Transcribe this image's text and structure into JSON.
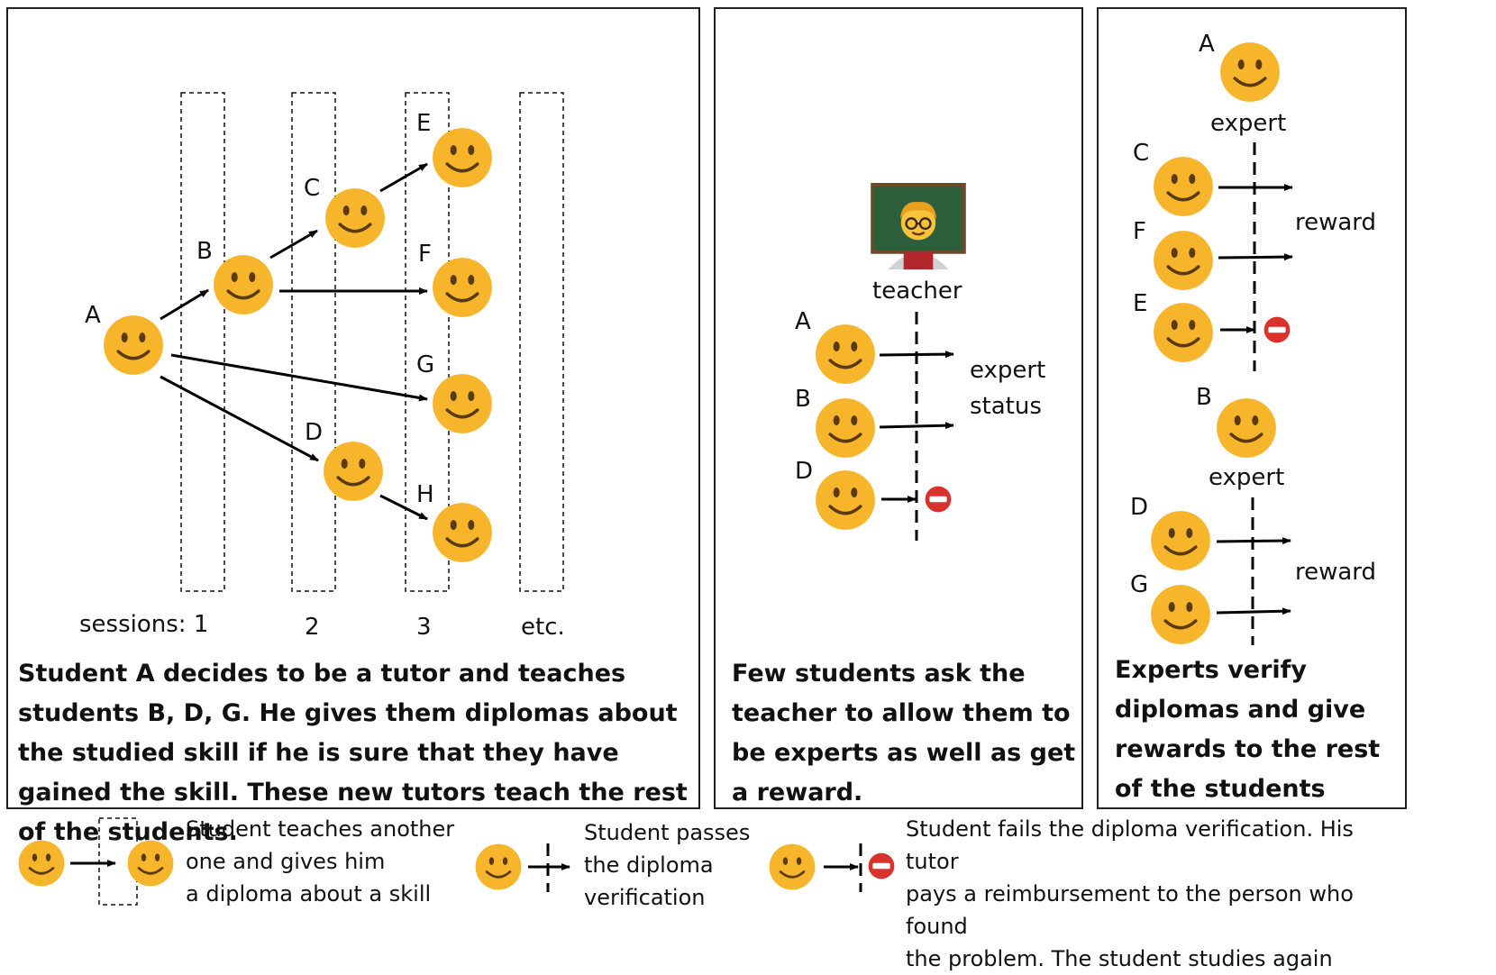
{
  "panels": {
    "tutoring": {
      "node_labels": {
        "A": "A",
        "B": "B",
        "C": "C",
        "D": "D",
        "E": "E",
        "F": "F",
        "G": "G",
        "H": "H"
      },
      "sessions": [
        "sessions: 1",
        "2",
        "3",
        "etc."
      ],
      "caption": "Student A decides to be a tutor and teaches students B, D, G. He gives them diplomas about the studied skill if he is sure that they have gained the skill. These new tutors teach the rest of the students."
    },
    "teacher": {
      "teacher_label": "teacher",
      "student_labels": {
        "A": "A",
        "B": "B",
        "D": "D"
      },
      "result_label_1": "expert",
      "result_label_2": "status",
      "caption": "Few students ask the teacher to allow them to be experts as well as get a reward."
    },
    "experts": {
      "group1": {
        "expert_name": "A",
        "expert_label": "expert",
        "students": [
          "C",
          "F",
          "E"
        ],
        "reward_label": "reward"
      },
      "group2": {
        "expert_name": "B",
        "expert_label": "expert",
        "students": [
          "D",
          "G"
        ],
        "reward_label": "reward"
      },
      "caption": "Experts verify diplomas and give rewards to the rest of the students"
    }
  },
  "legend": {
    "teach_text_1": "Student teaches another",
    "teach_text_2": "one and gives him",
    "teach_text_3": "a diploma about a skill",
    "pass_text_1": "Student passes",
    "pass_text_2": "the diploma",
    "pass_text_3": "verification",
    "fail_text_1": "Student fails the diploma verification. His tutor",
    "fail_text_2": "pays a reimbursement to the person who found",
    "fail_text_3": "the problem. The student studies again"
  },
  "icons": {
    "student": "smiling-face-icon",
    "teacher": "teacher-icon",
    "fail": "no-entry-icon"
  },
  "colors": {
    "face": "#f7b52c",
    "fail": "#d9312b",
    "teacher_board": "#2e5f3c"
  }
}
